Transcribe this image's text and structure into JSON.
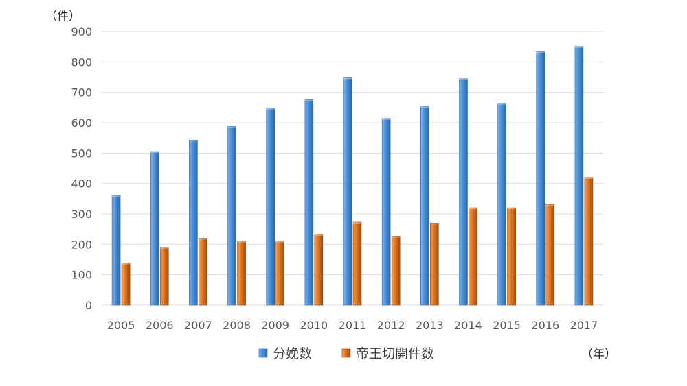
{
  "chart_data": {
    "type": "bar",
    "y_unit_label": "（件）",
    "x_unit_label": "（年）",
    "categories": [
      "2005",
      "2006",
      "2007",
      "2008",
      "2009",
      "2010",
      "2011",
      "2012",
      "2013",
      "2014",
      "2015",
      "2016",
      "2017"
    ],
    "series": [
      {
        "name": "分娩数",
        "color": "#4a8fd6",
        "values": [
          360,
          505,
          543,
          588,
          648,
          676,
          748,
          614,
          654,
          745,
          664,
          834,
          851
        ]
      },
      {
        "name": "帝王切開件数",
        "color": "#e0741e",
        "values": [
          138,
          190,
          220,
          210,
          210,
          233,
          273,
          227,
          270,
          320,
          320,
          331,
          420
        ]
      }
    ],
    "yticks": [
      "0",
      "100",
      "200",
      "300",
      "400",
      "500",
      "600",
      "700",
      "800",
      "900"
    ],
    "ylim": [
      0,
      900
    ],
    "grid": true,
    "legend_position": "bottom"
  }
}
